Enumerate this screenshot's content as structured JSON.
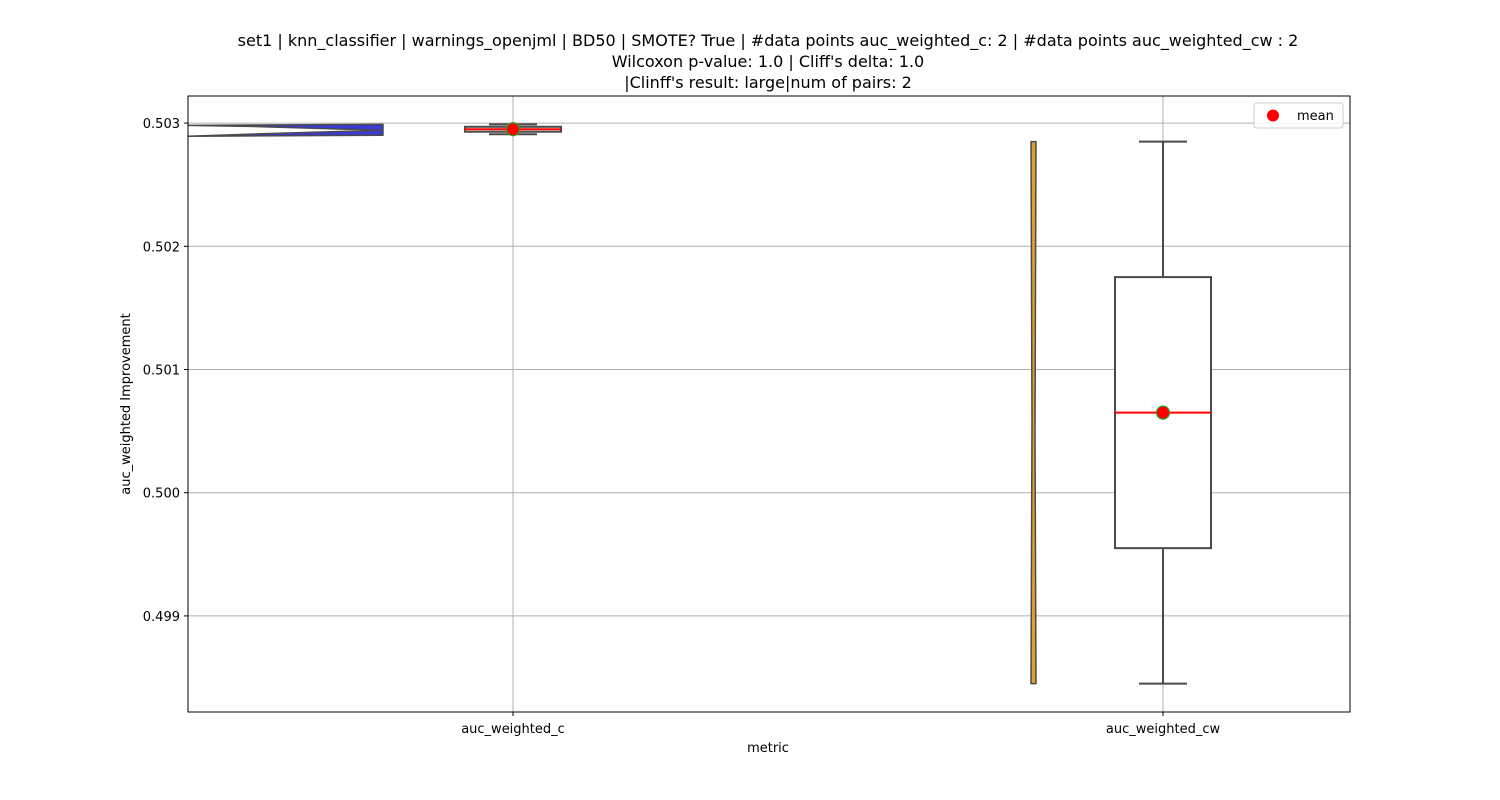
{
  "chart_data": {
    "type": "box+violin",
    "title": [
      "set1 | knn_classifier | warnings_openjml | BD50 | SMOTE? True | #data points auc_weighted_c: 2 | #data points auc_weighted_cw : 2",
      "Wilcoxon p-value: 1.0 | Cliff's delta: 1.0",
      "|Clinff's result: large|num of pairs: 2"
    ],
    "xlabel": "metric",
    "ylabel": "auc_weighted Improvement",
    "categories": [
      "auc_weighted_c",
      "auc_weighted_cw"
    ],
    "ylim": [
      0.49822,
      0.50322
    ],
    "yticks": [
      0.499,
      0.5,
      0.501,
      0.502,
      0.503
    ],
    "ytick_labels": [
      "0.499",
      "0.500",
      "0.501",
      "0.502",
      "0.503"
    ],
    "grid": true,
    "legend": {
      "placement": "top-right",
      "entries": [
        "mean"
      ]
    },
    "series": [
      {
        "category": "auc_weighted_c",
        "values": [
          0.50291,
          0.50299
        ],
        "box": {
          "whisker_low": 0.50291,
          "q1": 0.50293,
          "median": 0.50295,
          "q3": 0.50297,
          "whisker_high": 0.50299
        },
        "mean": 0.50295,
        "violin_color": "#3a3ad6"
      },
      {
        "category": "auc_weighted_cw",
        "values": [
          0.49845,
          0.50285
        ],
        "box": {
          "whisker_low": 0.49845,
          "q1": 0.49955,
          "median": 0.50065,
          "q3": 0.50175,
          "whisker_high": 0.50285
        },
        "mean": 0.50065,
        "violin_color": "#e0a030"
      }
    ],
    "colors": {
      "median_line": "#ff0000",
      "mean_marker": "#ff0000",
      "mean_marker_edge": "#2ca02c",
      "box_edge": "#4a4a4a",
      "grid": "#b0b0b0"
    }
  }
}
